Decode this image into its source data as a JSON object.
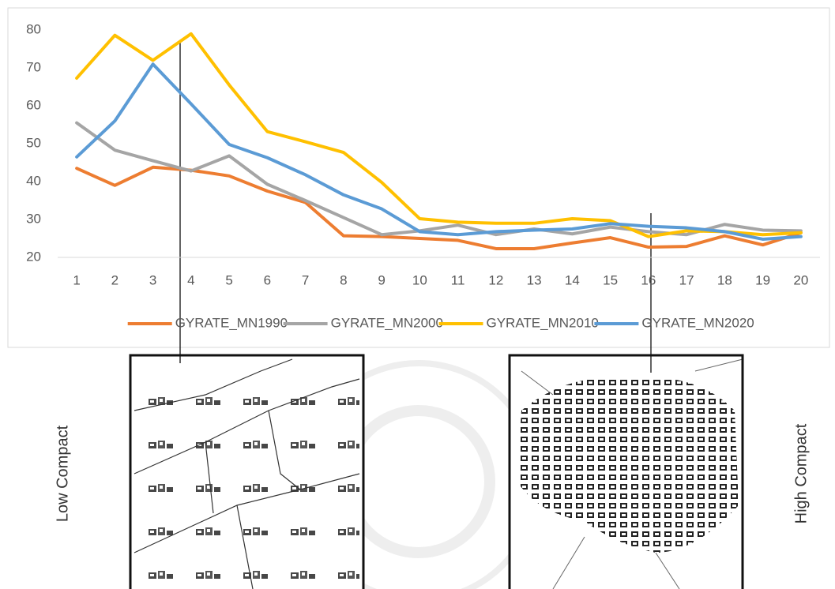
{
  "chart_data": {
    "type": "line",
    "x": [
      1,
      2,
      3,
      4,
      5,
      6,
      7,
      8,
      9,
      10,
      11,
      12,
      13,
      14,
      15,
      16,
      17,
      18,
      19,
      20
    ],
    "xlim": [
      0.5,
      20.5
    ],
    "ylim": [
      20,
      80
    ],
    "yticks": [
      20,
      30,
      40,
      50,
      60,
      70,
      80
    ],
    "grid": false,
    "legend": "bottom",
    "series": [
      {
        "name": "GYRATE_MN1990",
        "color": "#ed7d31",
        "values": [
          43.5,
          39,
          43.8,
          43,
          41.5,
          37.5,
          34.5,
          25.7,
          25.5,
          25,
          24.5,
          22.3,
          22.3,
          23.8,
          25.2,
          22.7,
          22.9,
          25.7,
          23.3,
          26.5
        ]
      },
      {
        "name": "GYRATE_MN2000",
        "color": "#a5a5a5",
        "values": [
          55.5,
          48.3,
          45.5,
          42.8,
          46.8,
          39.3,
          35,
          30.5,
          26,
          27,
          28.5,
          26,
          27.5,
          26.2,
          28,
          26.8,
          26,
          28.7,
          27.2,
          27
        ]
      },
      {
        "name": "GYRATE_MN2010",
        "color": "#ffc000",
        "values": [
          67.3,
          78.6,
          72,
          79,
          65.5,
          53.2,
          50.5,
          47.7,
          39.8,
          30.2,
          29.3,
          29,
          29,
          30.2,
          29.7,
          25.5,
          27,
          26.8,
          26,
          26.5
        ]
      },
      {
        "name": "GYRATE_MN2020",
        "color": "#5b9bd5",
        "values": [
          46.5,
          56,
          71,
          60.5,
          49.8,
          46.3,
          41.8,
          36.5,
          32.8,
          26.8,
          26,
          26.8,
          27.2,
          27.5,
          28.9,
          28.2,
          27.8,
          26.8,
          24.8,
          25.5
        ]
      }
    ]
  },
  "annotations": {
    "left_label": "Low Compact",
    "right_label": "High Compact"
  }
}
